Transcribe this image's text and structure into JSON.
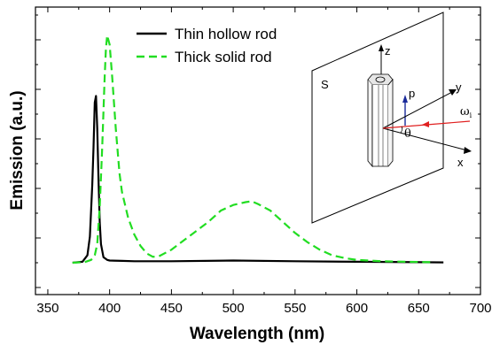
{
  "chart_data": {
    "type": "line",
    "title": "",
    "xlabel": "Wavelength (nm)",
    "ylabel": "Emission (a.u.)",
    "xlim": [
      340,
      700
    ],
    "ylim": [
      0,
      1.4
    ],
    "x_ticks": [
      350,
      400,
      450,
      500,
      550,
      600,
      650,
      700
    ],
    "x_tick_labels": [
      "350",
      "400",
      "450",
      "500",
      "550",
      "600",
      "650",
      "700"
    ],
    "y_tick_labels_shown": false,
    "grid": false,
    "legend_position": "top-left",
    "series": [
      {
        "name": "Thin hollow rod",
        "color": "#000000",
        "style": "solid",
        "x": [
          370,
          378,
          382,
          384,
          386,
          387,
          388,
          389,
          390,
          391,
          392,
          393,
          395,
          398,
          400,
          410,
          420,
          450,
          500,
          550,
          600,
          650,
          670
        ],
        "y": [
          0.0,
          0.005,
          0.04,
          0.14,
          0.42,
          0.62,
          0.86,
          0.895,
          0.72,
          0.45,
          0.22,
          0.1,
          0.03,
          0.015,
          0.012,
          0.01,
          0.008,
          0.008,
          0.012,
          0.008,
          0.005,
          0.003,
          0.002
        ]
      },
      {
        "name": "Thick solid rod",
        "color": "#22dd22",
        "style": "dashed",
        "x": [
          370,
          380,
          385,
          388,
          390,
          392,
          394,
          396,
          397,
          398,
          400,
          402,
          405,
          408,
          410,
          415,
          420,
          425,
          430,
          435,
          440,
          450,
          460,
          470,
          480,
          490,
          500,
          510,
          515,
          520,
          530,
          540,
          550,
          560,
          570,
          580,
          590,
          600,
          620,
          640,
          660
        ],
        "y": [
          0.0,
          0.004,
          0.015,
          0.04,
          0.1,
          0.3,
          0.62,
          1.0,
          1.15,
          1.22,
          1.17,
          1.0,
          0.72,
          0.48,
          0.38,
          0.24,
          0.15,
          0.09,
          0.05,
          0.032,
          0.035,
          0.07,
          0.12,
          0.17,
          0.22,
          0.28,
          0.31,
          0.325,
          0.33,
          0.315,
          0.28,
          0.22,
          0.16,
          0.11,
          0.07,
          0.04,
          0.025,
          0.015,
          0.008,
          0.005,
          0.003
        ]
      }
    ],
    "inset": {
      "plane_label": "S",
      "z_label": "z",
      "y_label": "y",
      "x_label": "x",
      "p_label": "p",
      "theta_label": "θ",
      "omega_label": "ω",
      "omega_sub": "i"
    }
  }
}
